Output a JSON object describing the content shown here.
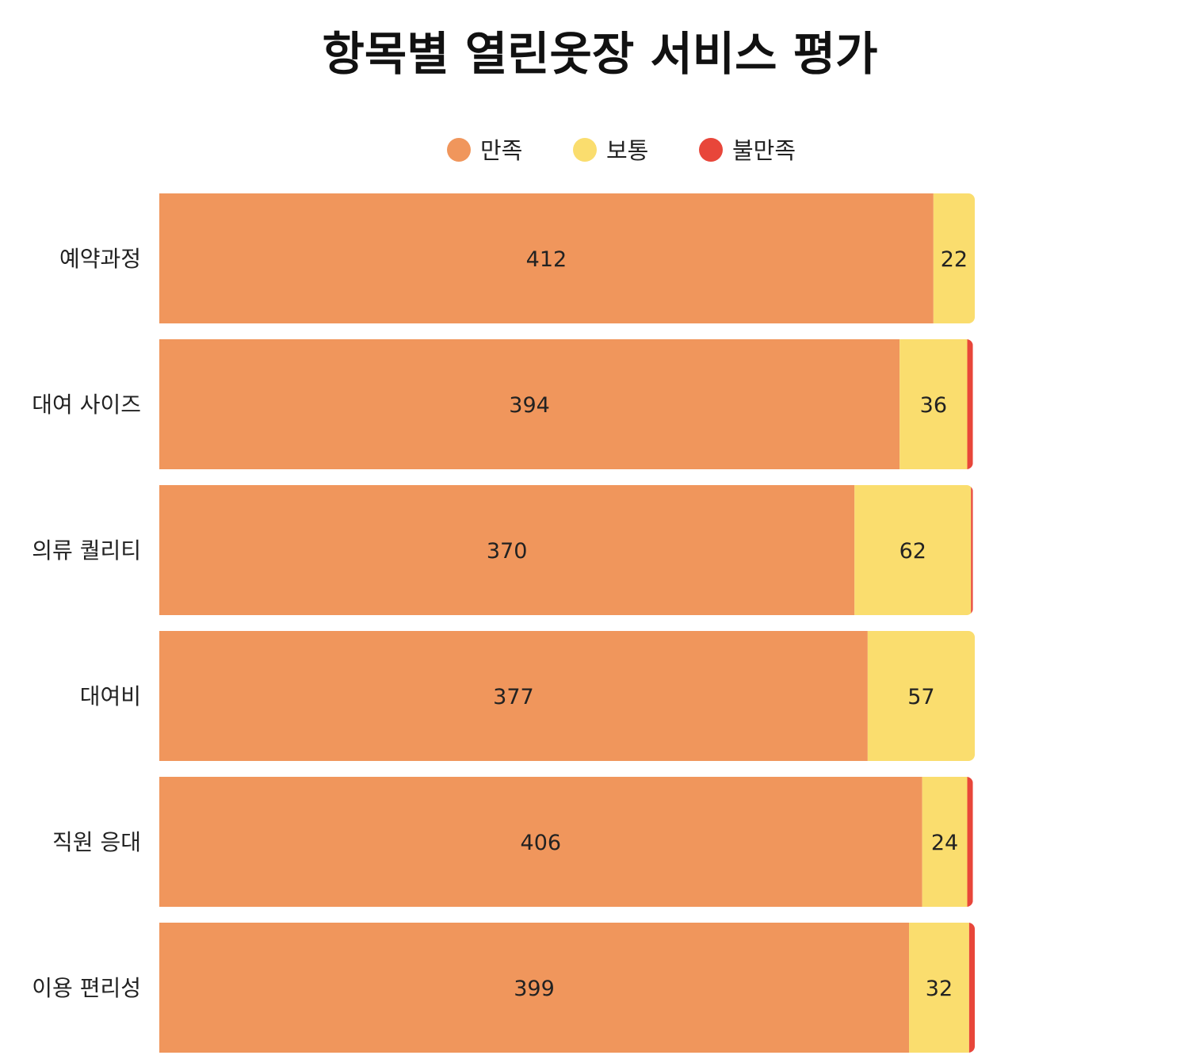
{
  "chart_data": {
    "type": "bar",
    "orientation": "horizontal",
    "stacked": true,
    "title": "항목별 열린옷장 서비스 평가",
    "legend": {
      "placement": "top-center"
    },
    "categories": [
      "예약과정",
      "대여 사이즈",
      "의류 퀄리티",
      "대여비",
      "직원 응대",
      "이용 편리성"
    ],
    "series": [
      {
        "name": "만족",
        "color": "#f0965c",
        "values": [
          412,
          394,
          370,
          377,
          406,
          399
        ]
      },
      {
        "name": "보통",
        "color": "#fadd6e",
        "values": [
          22,
          36,
          62,
          57,
          24,
          32
        ]
      },
      {
        "name": "불만족",
        "color": "#e8463a",
        "values": [
          0,
          3,
          1,
          0,
          3,
          3
        ]
      }
    ],
    "xlim": [
      0,
      434
    ],
    "grid": false,
    "axes_visible": false
  }
}
